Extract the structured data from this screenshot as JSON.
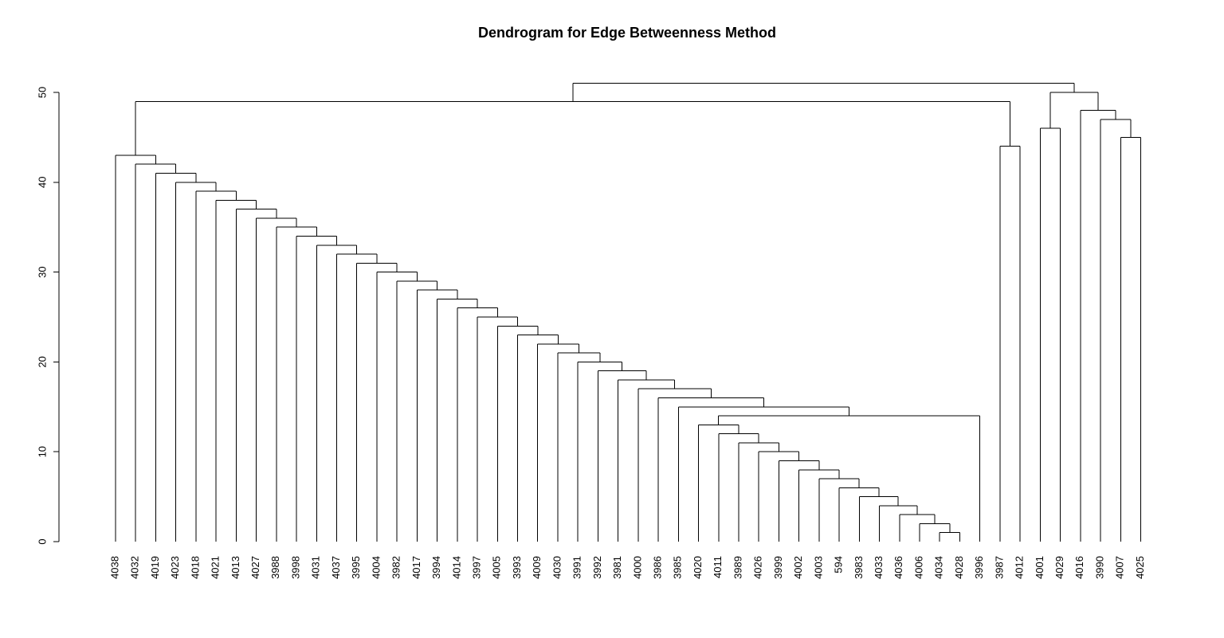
{
  "chart_data": {
    "type": "dendrogram",
    "title": "Dendrogram for Edge Betweenness Method",
    "xlabel": "",
    "ylabel": "",
    "ylim": [
      0,
      51
    ],
    "yticks": [
      0,
      10,
      20,
      30,
      40,
      50
    ],
    "leaves": [
      "4038",
      "4032",
      "4019",
      "4023",
      "4018",
      "4021",
      "4013",
      "4027",
      "3988",
      "3998",
      "4031",
      "4037",
      "3995",
      "4004",
      "3982",
      "4017",
      "3994",
      "4014",
      "3997",
      "4005",
      "3993",
      "4009",
      "4030",
      "3991",
      "3992",
      "3981",
      "4000",
      "3986",
      "3985",
      "4020",
      "4011",
      "3989",
      "4026",
      "3999",
      "4002",
      "4003",
      "594",
      "3983",
      "4033",
      "4036",
      "4006",
      "4034",
      "4028",
      "3996",
      "3987",
      "4012",
      "4001",
      "4029",
      "4016",
      "3990",
      "4007",
      "4025"
    ],
    "merges": [
      {
        "left": "4034",
        "right": "4028",
        "height": 1
      },
      {
        "left": "4006",
        "right": 0,
        "height": 2
      },
      {
        "left": "4036",
        "right": 1,
        "height": 3
      },
      {
        "left": "4033",
        "right": 2,
        "height": 4
      },
      {
        "left": "3983",
        "right": 3,
        "height": 5
      },
      {
        "left": "594",
        "right": 4,
        "height": 6
      },
      {
        "left": "4003",
        "right": 5,
        "height": 7
      },
      {
        "left": "4002",
        "right": 6,
        "height": 8
      },
      {
        "left": "3999",
        "right": 7,
        "height": 9
      },
      {
        "left": "4026",
        "right": 8,
        "height": 10
      },
      {
        "left": "3989",
        "right": 9,
        "height": 11
      },
      {
        "left": "4011",
        "right": 10,
        "height": 12
      },
      {
        "left": "4020",
        "right": 11,
        "height": 13
      },
      {
        "left": 12,
        "right": "3996",
        "height": 14
      },
      {
        "left": "3985",
        "right": 13,
        "height": 15
      },
      {
        "left": "3986",
        "right": 14,
        "height": 16
      },
      {
        "left": "4000",
        "right": 15,
        "height": 17
      },
      {
        "left": "3981",
        "right": 16,
        "height": 18
      },
      {
        "left": "3992",
        "right": 17,
        "height": 19
      },
      {
        "left": "3991",
        "right": 18,
        "height": 20
      },
      {
        "left": "4030",
        "right": 19,
        "height": 21
      },
      {
        "left": "4009",
        "right": 20,
        "height": 22
      },
      {
        "left": "3993",
        "right": 21,
        "height": 23
      },
      {
        "left": "4005",
        "right": 22,
        "height": 24
      },
      {
        "left": "3997",
        "right": 23,
        "height": 25
      },
      {
        "left": "4014",
        "right": 24,
        "height": 26
      },
      {
        "left": "3994",
        "right": 25,
        "height": 27
      },
      {
        "left": "4017",
        "right": 26,
        "height": 28
      },
      {
        "left": "3982",
        "right": 27,
        "height": 29
      },
      {
        "left": "4004",
        "right": 28,
        "height": 30
      },
      {
        "left": "3995",
        "right": 29,
        "height": 31
      },
      {
        "left": "4037",
        "right": 30,
        "height": 32
      },
      {
        "left": "4031",
        "right": 31,
        "height": 33
      },
      {
        "left": "3998",
        "right": 32,
        "height": 34
      },
      {
        "left": "3988",
        "right": 33,
        "height": 35
      },
      {
        "left": "4027",
        "right": 34,
        "height": 36
      },
      {
        "left": "4013",
        "right": 35,
        "height": 37
      },
      {
        "left": "4021",
        "right": 36,
        "height": 38
      },
      {
        "left": "4018",
        "right": 37,
        "height": 39
      },
      {
        "left": "4023",
        "right": 38,
        "height": 40
      },
      {
        "left": "4019",
        "right": 39,
        "height": 41
      },
      {
        "left": "4032",
        "right": 40,
        "height": 42
      },
      {
        "left": "4038",
        "right": 41,
        "height": 43
      },
      {
        "left": "3987",
        "right": "4012",
        "height": 44
      },
      {
        "left": "4007",
        "right": "4025",
        "height": 45
      },
      {
        "left": "4001",
        "right": "4029",
        "height": 46
      },
      {
        "left": "3990",
        "right": 44,
        "height": 47
      },
      {
        "left": "4016",
        "right": 46,
        "height": 48
      },
      {
        "left": 42,
        "right": 43,
        "height": 49
      },
      {
        "left": 45,
        "right": 47,
        "height": 50
      },
      {
        "left": 48,
        "right": 49,
        "height": 51
      }
    ]
  }
}
